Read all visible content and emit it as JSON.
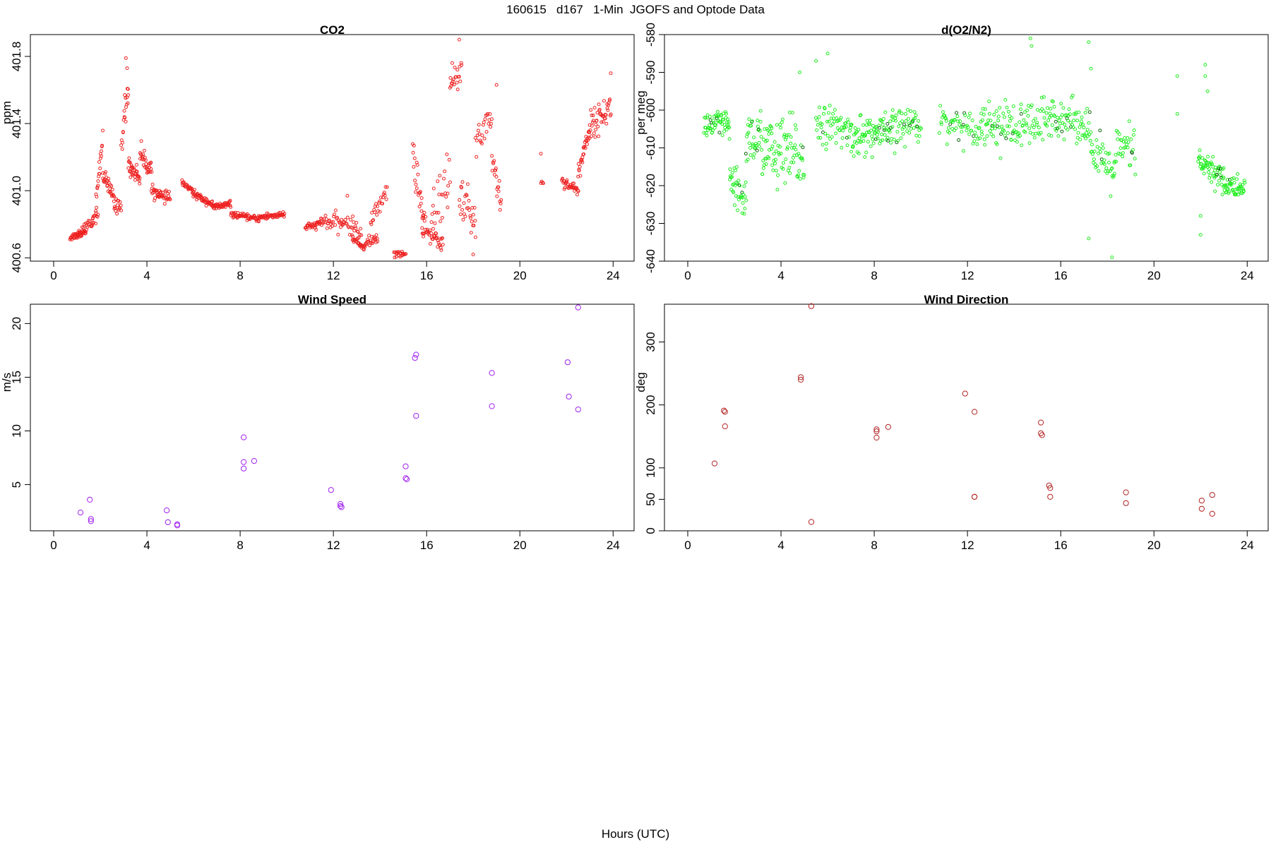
{
  "figure": {
    "title": "160615   d167   1-Min  JGOFS and Optode Data",
    "xlabel": "Hours (UTC)"
  },
  "chart_data": [
    {
      "type": "scatter",
      "title": "CO2",
      "ylabel": "ppm",
      "xlabel": "",
      "xlim": [
        -1,
        24.9
      ],
      "ylim": [
        400.58,
        401.93
      ],
      "xticks": [
        0,
        4,
        8,
        12,
        16,
        20,
        24
      ],
      "yticks": [
        400.6,
        401.0,
        401.4,
        401.8
      ],
      "ytick_labels": [
        "400.6",
        "401.0",
        "401.4",
        "401.8"
      ],
      "rotate_y_ticks": true,
      "marker_color": "#ee2222",
      "marker_size": "small",
      "grid": false,
      "dense_segments": [
        {
          "x0": 0.7,
          "x1": 1.4,
          "y0": 400.72,
          "y1": 400.76,
          "n": 40,
          "noise": 0.02
        },
        {
          "x0": 1.0,
          "x1": 1.7,
          "y0": 400.74,
          "y1": 400.82,
          "n": 25,
          "noise": 0.03
        },
        {
          "x0": 1.6,
          "x1": 1.9,
          "y0": 400.8,
          "y1": 400.86,
          "n": 12,
          "noise": 0.03
        },
        {
          "x0": 1.8,
          "x1": 2.1,
          "y0": 400.9,
          "y1": 401.32,
          "n": 20,
          "noise": 0.06
        },
        {
          "x0": 2.1,
          "x1": 2.6,
          "y0": 401.1,
          "y1": 400.95,
          "n": 30,
          "noise": 0.05
        },
        {
          "x0": 2.6,
          "x1": 2.9,
          "y0": 400.9,
          "y1": 400.92,
          "n": 15,
          "noise": 0.04
        },
        {
          "x0": 2.9,
          "x1": 3.2,
          "y0": 401.25,
          "y1": 401.62,
          "n": 18,
          "noise": 0.1
        },
        {
          "x0": 3.2,
          "x1": 3.7,
          "y0": 401.15,
          "y1": 401.08,
          "n": 35,
          "noise": 0.05
        },
        {
          "x0": 3.7,
          "x1": 4.2,
          "y0": 401.22,
          "y1": 401.12,
          "n": 30,
          "noise": 0.06
        },
        {
          "x0": 4.2,
          "x1": 4.6,
          "y0": 401.0,
          "y1": 400.98,
          "n": 25,
          "noise": 0.03
        },
        {
          "x0": 4.6,
          "x1": 5.0,
          "y0": 400.96,
          "y1": 400.96,
          "n": 20,
          "noise": 0.03
        },
        {
          "x0": 5.5,
          "x1": 6.0,
          "y0": 401.05,
          "y1": 400.99,
          "n": 25,
          "noise": 0.02
        },
        {
          "x0": 6.0,
          "x1": 6.8,
          "y0": 400.98,
          "y1": 400.92,
          "n": 45,
          "noise": 0.02
        },
        {
          "x0": 6.8,
          "x1": 7.6,
          "y0": 400.9,
          "y1": 400.92,
          "n": 45,
          "noise": 0.02
        },
        {
          "x0": 7.6,
          "x1": 8.8,
          "y0": 400.86,
          "y1": 400.83,
          "n": 60,
          "noise": 0.015
        },
        {
          "x0": 8.8,
          "x1": 9.9,
          "y0": 400.84,
          "y1": 400.86,
          "n": 55,
          "noise": 0.02
        },
        {
          "x0": 10.8,
          "x1": 11.4,
          "y0": 400.78,
          "y1": 400.8,
          "n": 30,
          "noise": 0.02
        },
        {
          "x0": 11.4,
          "x1": 12.4,
          "y0": 400.82,
          "y1": 400.8,
          "n": 35,
          "noise": 0.05
        },
        {
          "x0": 12.4,
          "x1": 13.2,
          "y0": 400.82,
          "y1": 400.76,
          "n": 25,
          "noise": 0.05
        },
        {
          "x0": 12.8,
          "x1": 13.3,
          "y0": 400.72,
          "y1": 400.66,
          "n": 25,
          "noise": 0.02
        },
        {
          "x0": 13.3,
          "x1": 13.9,
          "y0": 400.68,
          "y1": 400.72,
          "n": 25,
          "noise": 0.03
        },
        {
          "x0": 13.6,
          "x1": 14.3,
          "y0": 400.8,
          "y1": 401.02,
          "n": 25,
          "noise": 0.06
        },
        {
          "x0": 14.6,
          "x1": 15.1,
          "y0": 400.62,
          "y1": 400.62,
          "n": 20,
          "noise": 0.02
        },
        {
          "x0": 15.4,
          "x1": 15.9,
          "y0": 401.25,
          "y1": 400.8,
          "n": 25,
          "noise": 0.12
        },
        {
          "x0": 15.8,
          "x1": 16.7,
          "y0": 400.76,
          "y1": 400.7,
          "n": 40,
          "noise": 0.06
        },
        {
          "x0": 16.2,
          "x1": 17.0,
          "y0": 400.8,
          "y1": 401.1,
          "n": 25,
          "noise": 0.15
        },
        {
          "x0": 17.0,
          "x1": 17.5,
          "y0": 401.6,
          "y1": 401.7,
          "n": 20,
          "noise": 0.12
        },
        {
          "x0": 17.4,
          "x1": 18.1,
          "y0": 401.0,
          "y1": 400.78,
          "n": 30,
          "noise": 0.12
        },
        {
          "x0": 18.1,
          "x1": 18.8,
          "y0": 401.3,
          "y1": 401.45,
          "n": 25,
          "noise": 0.12
        },
        {
          "x0": 18.8,
          "x1": 19.2,
          "y0": 401.2,
          "y1": 400.92,
          "n": 20,
          "noise": 0.1
        },
        {
          "x0": 20.9,
          "x1": 21.0,
          "y0": 401.05,
          "y1": 401.05,
          "n": 4,
          "noise": 0.01
        },
        {
          "x0": 21.8,
          "x1": 22.5,
          "y0": 401.06,
          "y1": 401.0,
          "n": 35,
          "noise": 0.03
        },
        {
          "x0": 22.5,
          "x1": 23.0,
          "y0": 401.1,
          "y1": 401.38,
          "n": 30,
          "noise": 0.06
        },
        {
          "x0": 23.0,
          "x1": 23.9,
          "y0": 401.38,
          "y1": 401.5,
          "n": 45,
          "noise": 0.08
        }
      ],
      "points": [
        [
          3.1,
          401.79
        ],
        [
          3.15,
          401.73
        ],
        [
          3.05,
          401.57
        ],
        [
          3.2,
          401.57
        ],
        [
          17.4,
          401.9
        ],
        [
          17.1,
          401.76
        ],
        [
          19.0,
          401.63
        ],
        [
          23.9,
          401.7
        ],
        [
          20.9,
          401.22
        ],
        [
          18.0,
          400.62
        ],
        [
          16.9,
          400.9
        ],
        [
          12.6,
          400.97
        ]
      ]
    },
    {
      "type": "scatter",
      "title": "d(O2/N2)",
      "ylabel": "per meg",
      "xlabel": "",
      "xlim": [
        -1,
        24.9
      ],
      "ylim": [
        -640,
        -580
      ],
      "xticks": [
        0,
        4,
        8,
        12,
        16,
        20,
        24
      ],
      "yticks": [
        -640,
        -630,
        -620,
        -610,
        -600,
        -590,
        -580
      ],
      "ytick_labels": [
        "-640",
        "-630",
        "-620",
        "-610",
        "-600",
        "-590",
        "-580"
      ],
      "rotate_y_ticks": true,
      "marker_color": "#22ee22",
      "marker_size": "small",
      "grid": false,
      "dense_segments": [
        {
          "x0": 0.7,
          "x1": 1.8,
          "y0": -604,
          "y1": -604,
          "n": 60,
          "noise": 4
        },
        {
          "x0": 1.8,
          "x1": 2.5,
          "y0": -620,
          "y1": -624,
          "n": 40,
          "noise": 6
        },
        {
          "x0": 2.5,
          "x1": 3.6,
          "y0": -607,
          "y1": -610,
          "n": 60,
          "noise": 8
        },
        {
          "x0": 3.6,
          "x1": 5.0,
          "y0": -612,
          "y1": -612,
          "n": 70,
          "noise": 10
        },
        {
          "x0": 5.5,
          "x1": 7.0,
          "y0": -603,
          "y1": -606,
          "n": 60,
          "noise": 5
        },
        {
          "x0": 7.0,
          "x1": 8.8,
          "y0": -607,
          "y1": -606,
          "n": 90,
          "noise": 5
        },
        {
          "x0": 8.8,
          "x1": 10.0,
          "y0": -605,
          "y1": -603,
          "n": 50,
          "noise": 5
        },
        {
          "x0": 10.8,
          "x1": 12.6,
          "y0": -603,
          "y1": -605,
          "n": 60,
          "noise": 4
        },
        {
          "x0": 12.6,
          "x1": 14.3,
          "y0": -603,
          "y1": -605,
          "n": 70,
          "noise": 6
        },
        {
          "x0": 14.3,
          "x1": 15.6,
          "y0": -605,
          "y1": -603,
          "n": 50,
          "noise": 7
        },
        {
          "x0": 15.6,
          "x1": 17.3,
          "y0": -601,
          "y1": -604,
          "n": 70,
          "noise": 5
        },
        {
          "x0": 17.3,
          "x1": 18.3,
          "y0": -612,
          "y1": -616,
          "n": 40,
          "noise": 6
        },
        {
          "x0": 18.3,
          "x1": 19.2,
          "y0": -612,
          "y1": -610,
          "n": 35,
          "noise": 7
        },
        {
          "x0": 21.9,
          "x1": 23.0,
          "y0": -614,
          "y1": -618,
          "n": 60,
          "noise": 4
        },
        {
          "x0": 23.0,
          "x1": 23.9,
          "y0": -620,
          "y1": -621,
          "n": 50,
          "noise": 3
        }
      ],
      "points": [
        [
          14.7,
          -581
        ],
        [
          14.75,
          -583
        ],
        [
          17.2,
          -582
        ],
        [
          17.3,
          -589
        ],
        [
          17.2,
          -634
        ],
        [
          18.2,
          -639
        ],
        [
          22.2,
          -588
        ],
        [
          22.2,
          -591
        ],
        [
          22.3,
          -595
        ],
        [
          22.0,
          -628
        ],
        [
          22.0,
          -633
        ],
        [
          21.0,
          -591
        ],
        [
          21.0,
          -601
        ],
        [
          6.0,
          -585
        ],
        [
          5.5,
          -587
        ],
        [
          4.8,
          -590
        ]
      ]
    },
    {
      "type": "scatter",
      "title": "Wind Speed",
      "ylabel": "m/s",
      "xlabel": "",
      "xlim": [
        -1,
        24.9
      ],
      "ylim": [
        0.7,
        21.8
      ],
      "xticks": [
        0,
        4,
        8,
        12,
        16,
        20,
        24
      ],
      "yticks": [
        5,
        10,
        15,
        20
      ],
      "ytick_labels": [
        "5",
        "10",
        "15",
        "20"
      ],
      "rotate_y_ticks": true,
      "marker_color": "#a020f0",
      "marker_size": "large",
      "grid": false,
      "points": [
        [
          1.15,
          2.4
        ],
        [
          1.55,
          3.6
        ],
        [
          1.6,
          1.8
        ],
        [
          1.6,
          1.6
        ],
        [
          4.85,
          2.6
        ],
        [
          4.9,
          1.5
        ],
        [
          5.3,
          1.3
        ],
        [
          5.3,
          1.2
        ],
        [
          8.15,
          7.1
        ],
        [
          8.15,
          6.5
        ],
        [
          8.15,
          9.4
        ],
        [
          8.6,
          7.2
        ],
        [
          11.9,
          4.5
        ],
        [
          12.3,
          3.2
        ],
        [
          12.3,
          3.0
        ],
        [
          12.35,
          2.9
        ],
        [
          15.1,
          6.7
        ],
        [
          15.15,
          5.5
        ],
        [
          15.1,
          5.6
        ],
        [
          15.5,
          16.8
        ],
        [
          15.55,
          17.1
        ],
        [
          15.55,
          11.4
        ],
        [
          18.8,
          15.4
        ],
        [
          18.8,
          12.3
        ],
        [
          22.05,
          16.4
        ],
        [
          22.1,
          13.2
        ],
        [
          22.5,
          21.5
        ],
        [
          22.5,
          12.0
        ]
      ]
    },
    {
      "type": "scatter",
      "title": "Wind Direction",
      "ylabel": "deg",
      "xlabel": "",
      "xlim": [
        -1,
        24.9
      ],
      "ylim": [
        0,
        360
      ],
      "xticks": [
        0,
        4,
        8,
        12,
        16,
        20,
        24
      ],
      "yticks": [
        0,
        50,
        100,
        200,
        300
      ],
      "ytick_labels": [
        "0",
        "50",
        "100",
        "200",
        "300"
      ],
      "rotate_y_ticks": true,
      "marker_color": "#b22222",
      "marker_size": "large",
      "grid": false,
      "points": [
        [
          1.15,
          107
        ],
        [
          1.55,
          191
        ],
        [
          1.6,
          189
        ],
        [
          1.6,
          166
        ],
        [
          4.85,
          244
        ],
        [
          4.85,
          240
        ],
        [
          5.3,
          357
        ],
        [
          5.3,
          14
        ],
        [
          8.1,
          158
        ],
        [
          8.1,
          148
        ],
        [
          8.1,
          161
        ],
        [
          8.6,
          165
        ],
        [
          11.9,
          218
        ],
        [
          12.3,
          189
        ],
        [
          12.3,
          54
        ],
        [
          12.3,
          54
        ],
        [
          15.15,
          172
        ],
        [
          15.15,
          155
        ],
        [
          15.2,
          152
        ],
        [
          15.5,
          72
        ],
        [
          15.55,
          68
        ],
        [
          15.55,
          54
        ],
        [
          18.8,
          61
        ],
        [
          18.8,
          44
        ],
        [
          22.05,
          48
        ],
        [
          22.05,
          35
        ],
        [
          22.5,
          57
        ],
        [
          22.5,
          27
        ]
      ]
    }
  ]
}
